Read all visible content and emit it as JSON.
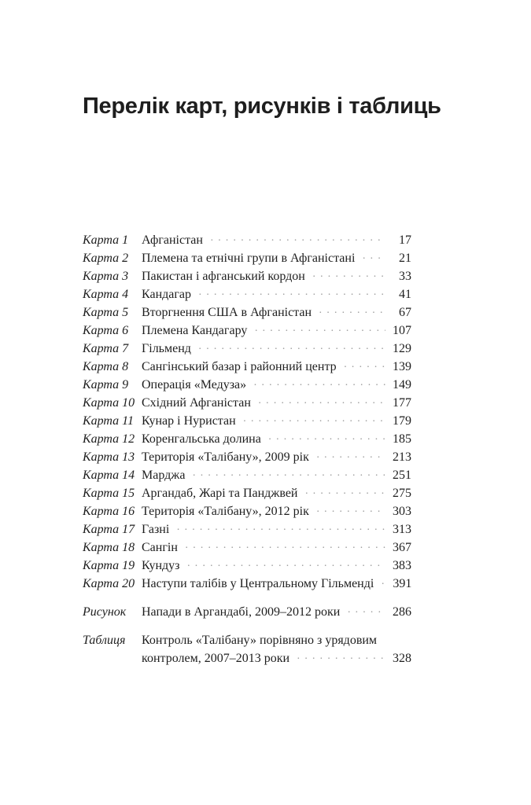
{
  "page": {
    "title": "Перелік карт, рисунків і таблиць"
  },
  "colors": {
    "background": "#ffffff",
    "text": "#1e1e1e",
    "dot_leader": "#9a9a9a"
  },
  "toc": {
    "entries": [
      {
        "label": "Карта 1",
        "lines": [
          "Афганістан"
        ],
        "page": "17",
        "gap_before": false
      },
      {
        "label": "Карта 2",
        "lines": [
          "Племена та етнічні групи в Афганістані"
        ],
        "page": "21",
        "gap_before": false
      },
      {
        "label": "Карта 3",
        "lines": [
          "Пакистан і афганський кордон"
        ],
        "page": "33",
        "gap_before": false
      },
      {
        "label": "Карта 4",
        "lines": [
          "Кандагар"
        ],
        "page": "41",
        "gap_before": false
      },
      {
        "label": "Карта 5",
        "lines": [
          "Вторгнення США в Афганістан"
        ],
        "page": "67",
        "gap_before": false
      },
      {
        "label": "Карта 6",
        "lines": [
          "Племена Кандагару"
        ],
        "page": "107",
        "gap_before": false
      },
      {
        "label": "Карта 7",
        "lines": [
          "Гільменд"
        ],
        "page": "129",
        "gap_before": false
      },
      {
        "label": "Карта 8",
        "lines": [
          "Сангінський базар і районний центр"
        ],
        "page": "139",
        "gap_before": false
      },
      {
        "label": "Карта 9",
        "lines": [
          "Операція «Медуза»"
        ],
        "page": "149",
        "gap_before": false
      },
      {
        "label": "Карта 10",
        "lines": [
          "Східний Афганістан"
        ],
        "page": "177",
        "gap_before": false
      },
      {
        "label": "Карта 11",
        "lines": [
          "Кунар і Нуристан"
        ],
        "page": "179",
        "gap_before": false
      },
      {
        "label": "Карта 12",
        "lines": [
          "Коренгальська долина"
        ],
        "page": "185",
        "gap_before": false
      },
      {
        "label": "Карта 13",
        "lines": [
          "Територія «Талібану», 2009 рік"
        ],
        "page": "213",
        "gap_before": false
      },
      {
        "label": "Карта 14",
        "lines": [
          "Марджа"
        ],
        "page": "251",
        "gap_before": false
      },
      {
        "label": "Карта 15",
        "lines": [
          "Аргандаб, Жарі та Панджвей"
        ],
        "page": "275",
        "gap_before": false
      },
      {
        "label": "Карта 16",
        "lines": [
          "Територія «Талібану», 2012 рік"
        ],
        "page": "303",
        "gap_before": false
      },
      {
        "label": "Карта 17",
        "lines": [
          "Газні"
        ],
        "page": "313",
        "gap_before": false
      },
      {
        "label": "Карта 18",
        "lines": [
          "Сангін"
        ],
        "page": "367",
        "gap_before": false
      },
      {
        "label": "Карта 19",
        "lines": [
          "Кундуз"
        ],
        "page": "383",
        "gap_before": false
      },
      {
        "label": "Карта 20",
        "lines": [
          "Наступи талібів у Центральному Гільменді"
        ],
        "page": "391",
        "gap_before": false
      },
      {
        "label": "Рисунок",
        "lines": [
          "Напади в Аргандабі, 2009–2012 роки"
        ],
        "page": "286",
        "gap_before": true
      },
      {
        "label": "Таблиця",
        "lines": [
          "Контроль «Талібану» порівняно з урядовим",
          "контролем, 2007–2013 роки"
        ],
        "page": "328",
        "gap_before": true
      }
    ]
  }
}
